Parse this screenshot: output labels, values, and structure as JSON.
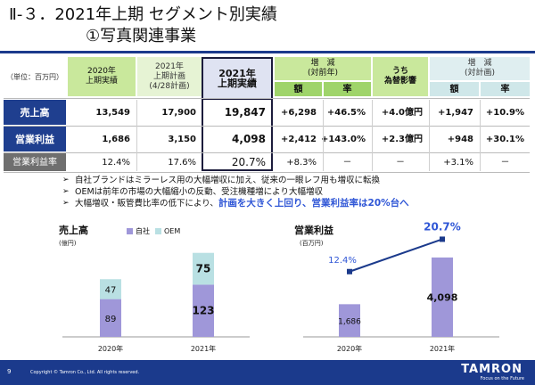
{
  "title": {
    "line1": "Ⅱ-３．2021年上期 セグメント別実績",
    "line2": "①写真関連事業"
  },
  "table": {
    "unit": "（単位：百万円）",
    "col_2020": "2020年\n上期実績",
    "col_plan": "2021年\n上期計画\n(4/28計画)",
    "col_actual": "2021年\n上期実績",
    "col_yoy": "増　減\n(対前年)",
    "col_fx": "うち\n為替影響",
    "col_vsplan": "増　減\n(対計画)",
    "sub_amount": "額",
    "sub_rate": "率",
    "rows": [
      {
        "label": "売上高",
        "v2020": "13,549",
        "plan": "17,900",
        "actual": "19,847",
        "yoy_amt": "+6,298",
        "yoy_rate": "+46.5%",
        "fx": "+4.0億円",
        "plan_amt": "+1,947",
        "plan_rate": "+10.9%"
      },
      {
        "label": "営業利益",
        "v2020": "1,686",
        "plan": "3,150",
        "actual": "4,098",
        "yoy_amt": "+2,412",
        "yoy_rate": "+143.0%",
        "fx": "+2.3億円",
        "plan_amt": "+948",
        "plan_rate": "+30.1%"
      },
      {
        "label": "営業利益率",
        "v2020": "12.4%",
        "plan": "17.6%",
        "actual": "20.7%",
        "yoy_amt": "+8.3%",
        "yoy_rate": "－",
        "fx": "－",
        "plan_amt": "+3.1%",
        "plan_rate": "－"
      }
    ]
  },
  "bullets": {
    "b1": "自社ブランドはミラーレス用の大幅増収に加え、従来の一眼レフ用も増収に転換",
    "b2": "OEMは前年の市場の大幅縮小の反動、受注機種増により大幅増収",
    "b3_pre": "大幅増収・販管費比率の低下により、",
    "b3_hl": "計画を大きく上回り、営業利益率は20%台へ"
  },
  "sales_chart": {
    "title": "売上高",
    "unit": "(億円)",
    "legend": [
      "自社",
      "OEM"
    ]
  },
  "profit_chart": {
    "title": "営業利益",
    "unit": "(百万円)"
  },
  "colors": {
    "own": "#9f97d9",
    "oem": "#b9e0e3",
    "profit_bar": "#9f97d9",
    "line": "#1b3a8c"
  },
  "chart_data": [
    {
      "type": "bar",
      "title": "売上高",
      "ylabel": "(億円)",
      "categories": [
        "2020年",
        "2021年"
      ],
      "stacked": true,
      "series": [
        {
          "name": "自社",
          "values": [
            89,
            123
          ]
        },
        {
          "name": "OEM",
          "values": [
            47,
            75
          ]
        }
      ],
      "ylim": [
        0,
        210
      ]
    },
    {
      "type": "bar",
      "title": "営業利益",
      "ylabel": "(百万円)",
      "categories": [
        "2020年",
        "2021年"
      ],
      "series": [
        {
          "name": "営業利益",
          "values": [
            1686,
            4098
          ]
        },
        {
          "name": "営業利益率",
          "type": "line",
          "values": [
            12.4,
            20.7
          ],
          "labels": [
            "12.4%",
            "20.7%"
          ]
        }
      ],
      "ylim": [
        0,
        4600
      ]
    }
  ],
  "footer": {
    "page": "9",
    "copyright": "Copyright © Tamron Co., Ltd. All rights reserved.",
    "logo": "TAMRON",
    "tagline": "Focus on the Future"
  }
}
